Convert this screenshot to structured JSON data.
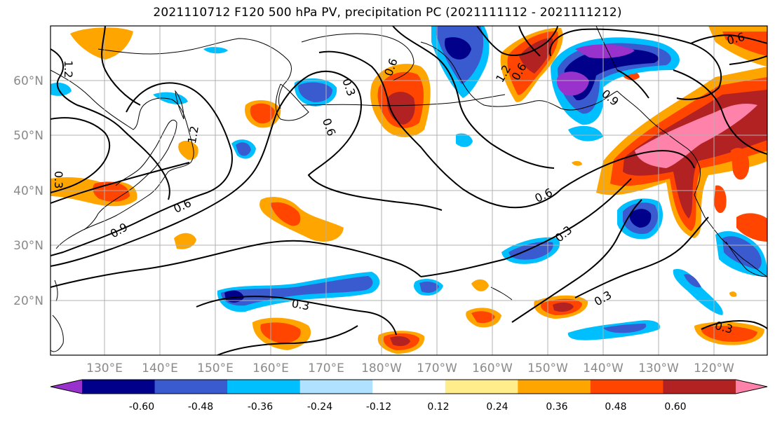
{
  "title": "2021110712 F120 500 hPa PV, precipitation PC (2021111112 - 2021111212)",
  "lat_labels": [
    "60°N",
    "50°N",
    "40°N",
    "30°N",
    "20°N"
  ],
  "lon_labels": [
    "130°E",
    "140°E",
    "150°E",
    "160°E",
    "170°E",
    "180°W",
    "170°W",
    "160°W",
    "150°W",
    "140°W",
    "130°W",
    "120°W"
  ],
  "contour_labels": [
    "1.2",
    "1.2",
    "1.2",
    "0.9",
    "0.3",
    "0.6",
    "0.6",
    "0.6",
    "0.6",
    "0.3",
    "0.3",
    "0.3",
    "0.3",
    "0.6",
    "0.9",
    "0.6",
    "0.3"
  ],
  "colorbar": {
    "ticks": [
      "-0.60",
      "-0.48",
      "-0.36",
      "-0.24",
      "-0.12",
      "0.12",
      "0.24",
      "0.36",
      "0.48",
      "0.60"
    ],
    "colors": [
      "#9932cc",
      "#00008b",
      "#3a5bd0",
      "#00bfff",
      "#b0e2ff",
      "#ffffff",
      "#ffec8b",
      "#ffa500",
      "#ff4500",
      "#b22222",
      "#ff82ab"
    ]
  },
  "map": {
    "region": "North Pacific",
    "field_contours": "500 hPa PV",
    "field_shaded": "precipitation PC"
  }
}
